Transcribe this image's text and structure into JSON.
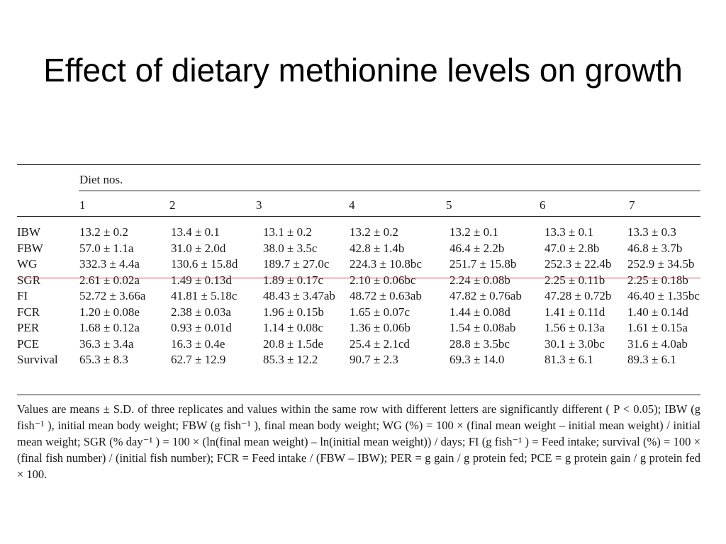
{
  "slide": {
    "title": "Effect of dietary methionine levels on growth"
  },
  "table": {
    "group_header": "Diet nos.",
    "columns": [
      "1",
      "2",
      "3",
      "4",
      "5",
      "6",
      "7"
    ],
    "rows": [
      {
        "label": "IBW",
        "values": [
          "13.2 ± 0.2",
          "13.4 ± 0.1",
          "13.1 ± 0.2",
          "13.2 ± 0.2",
          "13.2 ± 0.1",
          "13.3 ± 0.1",
          "13.3 ± 0.3"
        ]
      },
      {
        "label": "FBW",
        "values": [
          "57.0 ± 1.1a",
          "31.0 ± 2.0d",
          "38.0 ± 3.5c",
          "42.8 ± 1.4b",
          "46.4 ± 2.2b",
          "47.0 ± 2.8b",
          "46.8 ± 3.7b"
        ]
      },
      {
        "label": "WG",
        "values": [
          "332.3 ± 4.4a",
          "130.6 ± 15.8d",
          "189.7 ± 27.0c",
          "224.3 ± 10.8bc",
          "251.7 ± 15.8b",
          "252.3 ± 22.4b",
          "252.9 ± 34.5b"
        ]
      },
      {
        "label": "SGR",
        "values": [
          "2.61 ± 0.02a",
          "1.49 ± 0.13d",
          "1.89 ± 0.17c",
          "2.10 ± 0.06bc",
          "2.24 ± 0.08b",
          "2.25 ± 0.11b",
          "2.25 ± 0.18b"
        ]
      },
      {
        "label": "FI",
        "values": [
          "52.72 ± 3.66a",
          "41.81 ± 5.18c",
          "48.43 ± 3.47ab",
          "48.72 ± 0.63ab",
          "47.82 ± 0.76ab",
          "47.28 ± 0.72b",
          "46.40 ± 1.35bc"
        ]
      },
      {
        "label": "FCR",
        "values": [
          "1.20 ± 0.08e",
          "2.38 ± 0.03a",
          "1.96 ± 0.15b",
          "1.65 ± 0.07c",
          "1.44 ± 0.08d",
          "1.41 ± 0.11d",
          "1.40 ± 0.14d"
        ]
      },
      {
        "label": "PER",
        "values": [
          "1.68 ± 0.12a",
          "0.93 ± 0.01d",
          "1.14 ± 0.08c",
          "1.36 ± 0.06b",
          "1.54 ± 0.08ab",
          "1.56 ± 0.13a",
          "1.61 ± 0.15a"
        ]
      },
      {
        "label": "PCE",
        "values": [
          "36.3 ± 3.4a",
          "16.3 ± 0.4e",
          "20.8 ± 1.5de",
          "25.4 ± 2.1cd",
          "28.8 ± 3.5bc",
          "30.1 ± 3.0bc",
          "31.6 ± 4.0ab"
        ]
      },
      {
        "label": "Survival",
        "values": [
          "65.3 ± 8.3",
          "62.7 ± 12.9",
          "85.3 ± 12.2",
          "90.7 ± 2.3",
          "69.3 ± 14.0",
          "81.3 ± 6.1",
          "89.3 ± 6.1"
        ]
      }
    ],
    "highlight_color": "#e0404a"
  },
  "footnote": "Values are means ± S.D. of three replicates and values within the same row with different letters are significantly different ( P < 0.05); IBW (g fish⁻¹ ), initial mean body weight; FBW (g fish⁻¹ ), final mean body weight; WG (%) = 100 × (final mean weight – initial mean weight) / initial mean weight; SGR (% day⁻¹ ) = 100 × (ln(final mean weight) – ln(initial mean weight)) / days; FI (g fish⁻¹ ) = Feed intake; survival (%) = 100 × (final fish number) / (initial fish number); FCR = Feed intake / (FBW – IBW); PER = g gain / g protein fed; PCE = g protein gain / g protein fed × 100."
}
